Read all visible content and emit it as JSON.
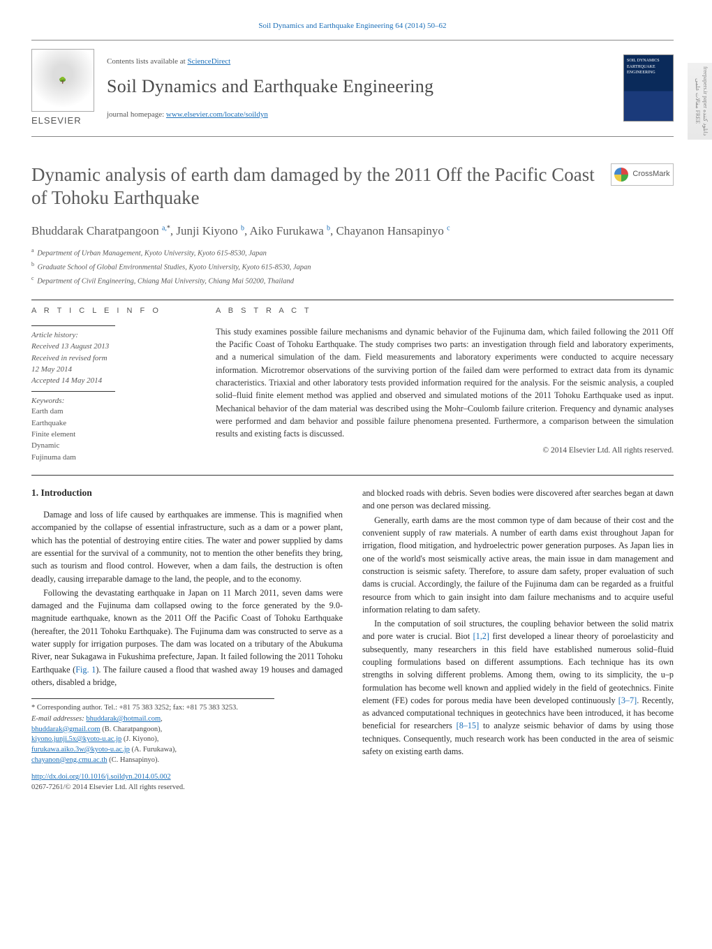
{
  "side_banner": "freepapers.ir paper دانلود کننده مقالات علمی FREE",
  "top_link_prefix": "Soil Dynamics and Earthquake Engineering 64 (2014) 50–62",
  "masthead": {
    "contents_prefix": "Contents lists available at ",
    "contents_link": "ScienceDirect",
    "journal_title": "Soil Dynamics and Earthquake Engineering",
    "home_prefix": "journal homepage: ",
    "home_link": "www.elsevier.com/locate/soildyn",
    "publisher": "ELSEVIER",
    "cover_label": "SOIL DYNAMICS EARTHQUAKE ENGINEERING"
  },
  "crossmark_label": "CrossMark",
  "article_title": "Dynamic analysis of earth dam damaged by the 2011 Off the Pacific Coast of Tohoku Earthquake",
  "authors_html": "Bhuddarak Charatpangoon <sup>a,</sup><sup class='star'>*</sup>, Junji Kiyono <sup>b</sup>, Aiko Furukawa <sup>b</sup>, Chayanon Hansapinyo <sup>c</sup>",
  "affiliations": [
    {
      "sup": "a",
      "text": "Department of Urban Management, Kyoto University, Kyoto 615-8530, Japan"
    },
    {
      "sup": "b",
      "text": "Graduate School of Global Environmental Studies, Kyoto University, Kyoto 615-8530, Japan"
    },
    {
      "sup": "c",
      "text": "Department of Civil Engineering, Chiang Mai University, Chiang Mai 50200, Thailand"
    }
  ],
  "labels": {
    "article_info": "A R T I C L E  I N F O",
    "abstract": "A B S T R A C T",
    "history_label": "Article history:",
    "keywords_label": "Keywords:"
  },
  "history": [
    "Received 13 August 2013",
    "Received in revised form",
    "12 May 2014",
    "Accepted 14 May 2014"
  ],
  "keywords": [
    "Earth dam",
    "Earthquake",
    "Finite element",
    "Dynamic",
    "Fujinuma dam"
  ],
  "abstract": "This study examines possible failure mechanisms and dynamic behavior of the Fujinuma dam, which failed following the 2011 Off the Pacific Coast of Tohoku Earthquake. The study comprises two parts: an investigation through field and laboratory experiments, and a numerical simulation of the dam. Field measurements and laboratory experiments were conducted to acquire necessary information. Microtremor observations of the surviving portion of the failed dam were performed to extract data from its dynamic characteristics. Triaxial and other laboratory tests provided information required for the analysis. For the seismic analysis, a coupled solid–fluid finite element method was applied and observed and simulated motions of the 2011 Tohoku Earthquake used as input. Mechanical behavior of the dam material was described using the Mohr–Coulomb failure criterion. Frequency and dynamic analyses were performed and dam behavior and possible failure phenomena presented. Furthermore, a comparison between the simulation results and existing facts is discussed.",
  "copyright": "© 2014 Elsevier Ltd. All rights reserved.",
  "intro_heading": "1.  Introduction",
  "left_paras": [
    "Damage and loss of life caused by earthquakes are immense. This is magnified when accompanied by the collapse of essential infrastructure, such as a dam or a power plant, which has the potential of destroying entire cities. The water and power supplied by dams are essential for the survival of a community, not to mention the other benefits they bring, such as tourism and flood control. However, when a dam fails, the destruction is often deadly, causing irreparable damage to the land, the people, and to the economy.",
    "Following the devastating earthquake in Japan on 11 March 2011, seven dams were damaged and the Fujinuma dam collapsed owing to the force generated by the 9.0-magnitude earthquake, known as the 2011 Off the Pacific Coast of Tohoku Earthquake (hereafter, the 2011 Tohoku Earthquake). The Fujinuma dam was constructed to serve as a water supply for irrigation purposes. The dam was located on a tributary of the Abukuma River, near Sukagawa in Fukushima prefecture, Japan. It failed following the 2011 Tohoku Earthquake (Fig. 1). The failure caused a flood that washed away 19 houses and damaged others, disabled a bridge,"
  ],
  "right_paras": [
    "and blocked roads with debris. Seven bodies were discovered after searches began at dawn and one person was declared missing.",
    "Generally, earth dams are the most common type of dam because of their cost and the convenient supply of raw materials. A number of earth dams exist throughout Japan for irrigation, flood mitigation, and hydroelectric power generation purposes. As Japan lies in one of the world's most seismically active areas, the main issue in dam management and construction is seismic safety. Therefore, to assure dam safety, proper evaluation of such dams is crucial. Accordingly, the failure of the Fujinuma dam can be regarded as a fruitful resource from which to gain insight into dam failure mechanisms and to acquire useful information relating to dam safety.",
    "In the computation of soil structures, the coupling behavior between the solid matrix and pore water is crucial. Biot [1,2] first developed a linear theory of poroelasticity and subsequently, many researchers in this field have established numerous solid–fluid coupling formulations based on different assumptions. Each technique has its own strengths in solving different problems. Among them, owing to its simplicity, the u–p formulation has become well known and applied widely in the field of geotechnics. Finite element (FE) codes for porous media have been developed continuously [3–7]. Recently, as advanced computational techniques in geotechnics have been introduced, it has become beneficial for researchers [8–15] to analyze seismic behavior of dams by using those techniques. Consequently, much research work has been conducted in the area of seismic safety on existing earth dams."
  ],
  "footnotes": {
    "corr": "* Corresponding author. Tel.: +81 75 383 3252; fax: +81 75 383 3253.",
    "email_label": "E-mail addresses: ",
    "lines": [
      {
        "addr": "bhuddarak@hotmail.com",
        "tail": ","
      },
      {
        "addr": "bhuddarak@gmail.com",
        "tail": " (B. Charatpangoon),"
      },
      {
        "addr": "kiyono.junji.5x@kyoto-u.ac.jp",
        "tail": " (J. Kiyono),"
      },
      {
        "addr": "furukawa.aiko.3w@kyoto-u.ac.jp",
        "tail": " (A. Furukawa),"
      },
      {
        "addr": "chayanon@eng.cmu.ac.th",
        "tail": " (C. Hansapinyo)."
      }
    ]
  },
  "doi": {
    "link": "http://dx.doi.org/10.1016/j.soildyn.2014.05.002",
    "line2": "0267-7261/© 2014 Elsevier Ltd. All rights reserved."
  },
  "colors": {
    "link": "#1a6eb8",
    "text": "#2a2a2a",
    "muted": "#5a5a5a"
  }
}
